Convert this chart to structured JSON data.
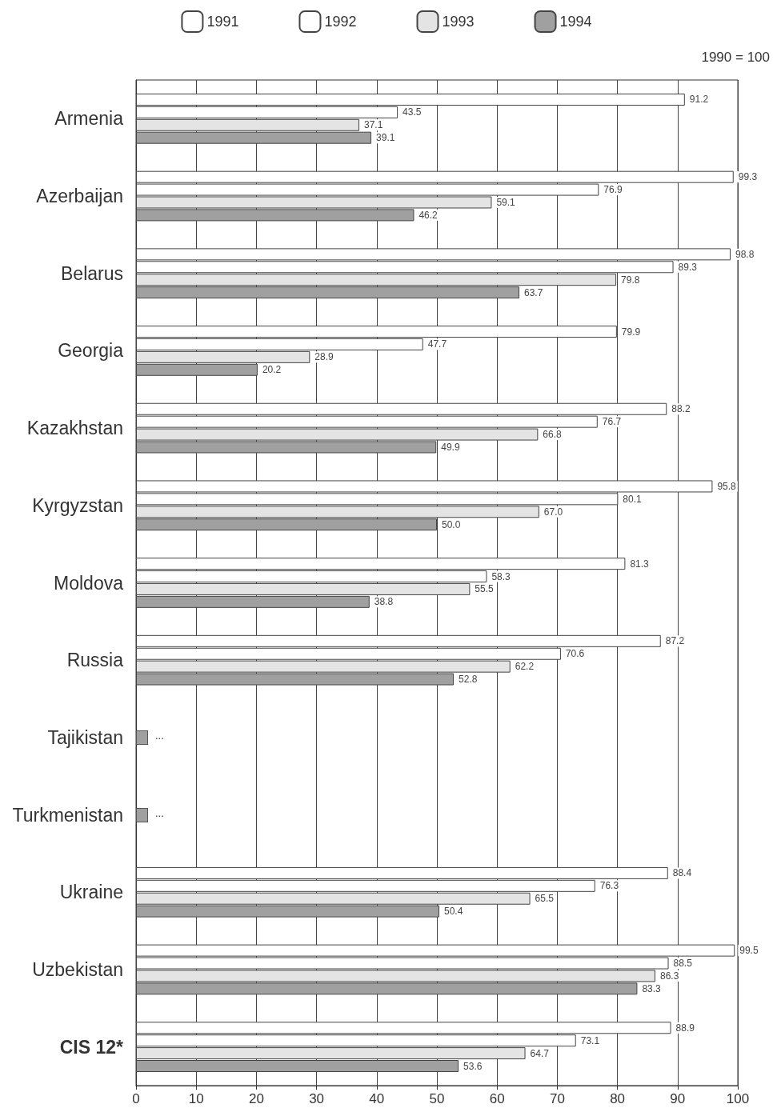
{
  "chart_data": {
    "type": "bar",
    "orientation": "horizontal",
    "categories": [
      "Armenia",
      "Azerbaijan",
      "Belarus",
      "Georgia",
      "Kazakhstan",
      "Kyrgyzstan",
      "Moldova",
      "Russia",
      "Tajikistan",
      "Turkmenistan",
      "Ukraine",
      "Uzbekistan",
      "CIS 12*"
    ],
    "series": [
      {
        "name": "1991",
        "color": "#ffffff",
        "values": [
          91.2,
          99.3,
          98.8,
          79.9,
          88.2,
          95.8,
          81.3,
          87.2,
          null,
          null,
          88.4,
          99.5,
          88.9
        ],
        "value_labels": [
          "91.2",
          "99.3",
          "98.8",
          "79.9",
          "88.2",
          "95.8",
          "81.3",
          "87.2",
          null,
          null,
          "88.4",
          "99.5",
          "88.9"
        ]
      },
      {
        "name": "1992",
        "color": "#ffffff",
        "values": [
          43.5,
          76.9,
          89.3,
          47.7,
          76.7,
          80.1,
          58.3,
          70.6,
          null,
          null,
          76.3,
          88.5,
          73.1
        ],
        "value_labels": [
          "43.5",
          "76.9",
          "89.3",
          "47.7",
          "76.7",
          "80.1",
          "58.3",
          "70.6",
          null,
          null,
          "76.3",
          "88.5",
          "73.1"
        ]
      },
      {
        "name": "1993",
        "color": "#e4e4e4",
        "values": [
          37.1,
          59.1,
          79.8,
          28.9,
          66.8,
          67.0,
          55.5,
          62.2,
          null,
          null,
          65.5,
          86.3,
          64.7
        ],
        "value_labels": [
          "37.1",
          "59.1",
          "79.8",
          "28.9",
          "66.8",
          "67.0",
          "55.5",
          "62.2",
          null,
          null,
          "65.5",
          "86.3",
          "64.7"
        ]
      },
      {
        "name": "1994",
        "color": "#a0a0a0",
        "values": [
          39.1,
          46.2,
          63.7,
          20.2,
          49.9,
          50.0,
          38.8,
          52.8,
          null,
          null,
          50.4,
          83.3,
          53.6
        ],
        "value_labels": [
          "39.1",
          "46.2",
          "63.7",
          "20.2",
          "49.9",
          "50.0",
          "38.8",
          "52.8",
          null,
          null,
          "50.4",
          "83.3",
          "53.6"
        ]
      }
    ],
    "xlim": [
      0,
      100
    ],
    "xticks": [
      0,
      10,
      20,
      30,
      40,
      50,
      60,
      70,
      80,
      90,
      100
    ],
    "grid": "x",
    "legend": "top",
    "annotations": [
      "1990 = 100",
      "...",
      "..."
    ]
  }
}
